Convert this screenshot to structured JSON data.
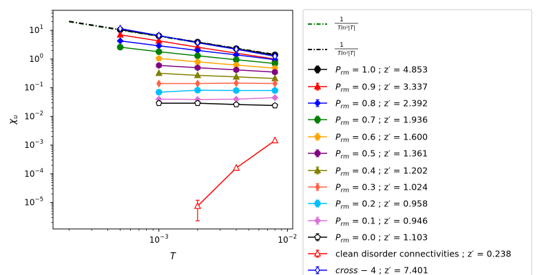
{
  "chart_data": {
    "type": "line",
    "xlabel": "T",
    "ylabel": "χu",
    "xscale": "log",
    "yscale": "log",
    "xlim": [
      0.00015,
      0.011
    ],
    "ylim": [
      1.2e-06,
      50
    ],
    "xticks": [
      {
        "value": 0.001,
        "label": "10",
        "exp": "−3"
      },
      {
        "value": 0.01,
        "label": "10",
        "exp": "−2"
      }
    ],
    "yticks": [
      {
        "value": 1e-05,
        "label": "10",
        "exp": "−5"
      },
      {
        "value": 0.0001,
        "label": "10",
        "exp": "−4"
      },
      {
        "value": 0.001,
        "label": "10",
        "exp": "−3"
      },
      {
        "value": 0.01,
        "label": "10",
        "exp": "−2"
      },
      {
        "value": 0.1,
        "label": "10",
        "exp": "−1"
      },
      {
        "value": 1,
        "label": "10",
        "exp": "0"
      },
      {
        "value": 10,
        "label": "10",
        "exp": "1"
      }
    ],
    "legend_position": "outside-right",
    "reference_lines": [
      {
        "name": "1/(Tln²|T|)",
        "style": "dashdot",
        "color": "#008000",
        "x": [
          0.0002,
          0.008
        ],
        "y": [
          20.1,
          1.37
        ]
      },
      {
        "name": "1/(Tln²|T|)",
        "style": "dashdot",
        "color": "#000000",
        "x": [
          0.0002,
          0.008
        ],
        "y": [
          20.5,
          1.44
        ]
      }
    ],
    "series": [
      {
        "name": "P_rm = 1.0 ; z' = 4.853",
        "color": "#000000",
        "marker": "o",
        "x": [
          0.0005,
          0.001,
          0.002,
          0.004,
          0.008
        ],
        "y": [
          10.5,
          6.4,
          3.9,
          2.3,
          1.4
        ]
      },
      {
        "name": "P_rm = 0.9 ; z' = 3.337",
        "color": "#ff0000",
        "marker": "^",
        "x": [
          0.0005,
          0.001,
          0.002,
          0.004,
          0.008
        ],
        "y": [
          7.0,
          4.3,
          2.6,
          1.6,
          1.0
        ]
      },
      {
        "name": "P_rm = 0.8 ; z' = 2.392",
        "color": "#0000ff",
        "marker": "D",
        "x": [
          0.0005,
          0.001,
          0.002,
          0.004,
          0.008
        ],
        "y": [
          4.3,
          2.9,
          2.0,
          1.4,
          0.95
        ]
      },
      {
        "name": "P_rm = 0.7 ; z' = 1.936",
        "color": "#008000",
        "marker": "o",
        "x": [
          0.0005,
          0.001,
          0.002,
          0.004,
          0.008
        ],
        "y": [
          2.6,
          1.8,
          1.3,
          0.95,
          0.7
        ]
      },
      {
        "name": "P_rm = 0.6 ; z' = 1.600",
        "color": "#ffa500",
        "marker": "p",
        "x": [
          0.001,
          0.002,
          0.004,
          0.008
        ],
        "y": [
          1.05,
          0.8,
          0.62,
          0.48
        ]
      },
      {
        "name": "P_rm = 0.5 ; z' = 1.361",
        "color": "#800080",
        "marker": "h",
        "x": [
          0.001,
          0.002,
          0.004,
          0.008
        ],
        "y": [
          0.6,
          0.5,
          0.42,
          0.35
        ]
      },
      {
        "name": "P_rm = 0.4 ; z' = 1.202",
        "color": "#808000",
        "marker": "^",
        "x": [
          0.001,
          0.002,
          0.004,
          0.008
        ],
        "y": [
          0.32,
          0.27,
          0.24,
          0.21
        ]
      },
      {
        "name": "P_rm = 0.3 ; z' = 1.024",
        "color": "#ff6347",
        "marker": "d",
        "x": [
          0.001,
          0.002,
          0.004,
          0.008
        ],
        "y": [
          0.14,
          0.14,
          0.145,
          0.14
        ]
      },
      {
        "name": "P_rm = 0.2 ; z' = 0.958",
        "color": "#00bfff",
        "marker": "o",
        "x": [
          0.001,
          0.002,
          0.004,
          0.008
        ],
        "y": [
          0.07,
          0.082,
          0.08,
          0.08
        ]
      },
      {
        "name": "P_rm = 0.1 ; z' = 0.946",
        "color": "#da70d6",
        "marker": "D",
        "x": [
          0.001,
          0.002,
          0.004,
          0.008
        ],
        "y": [
          0.04,
          0.039,
          0.04,
          0.045
        ]
      },
      {
        "name": "P_rm = 0.0 ; z' = 1.103",
        "color": "#000000",
        "marker": "p",
        "open": true,
        "x": [
          0.001,
          0.002,
          0.004,
          0.008
        ],
        "y": [
          0.029,
          0.029,
          0.026,
          0.024
        ]
      },
      {
        "name": "clean disorder connectivities ; z' = 0.238",
        "color": "#ff0000",
        "marker": "^",
        "open": true,
        "x": [
          0.002,
          0.004,
          0.008
        ],
        "y": [
          7.5e-06,
          0.00016,
          0.00145
        ],
        "err_low": [
          5.2e-06,
          0,
          0
        ],
        "err_high": [
          4.5e-06,
          0,
          0
        ]
      },
      {
        "name": "cross − 4 ; z' = 7.401",
        "color": "#0000ff",
        "marker": "d",
        "open": true,
        "x": [
          0.0005,
          0.001,
          0.002,
          0.004,
          0.008
        ],
        "y": [
          11.5,
          6.6,
          3.7,
          2.2,
          1.25
        ]
      }
    ],
    "legend": [
      {
        "kind": "line",
        "color": "#008000",
        "style": "dashdot",
        "num": "1",
        "den": "Tln²|T|"
      },
      {
        "kind": "line",
        "color": "#000000",
        "style": "dashdot",
        "num": "1",
        "den": "Tln²|T|"
      },
      {
        "kind": "series",
        "index": 0,
        "prefix": "P",
        "sub": "rm",
        "rest": " = 1.0 ; z′ = 4.853"
      },
      {
        "kind": "series",
        "index": 1,
        "prefix": "P",
        "sub": "rm",
        "rest": " = 0.9 ; z′ = 3.337"
      },
      {
        "kind": "series",
        "index": 2,
        "prefix": "P",
        "sub": "rm",
        "rest": " = 0.8 ; z′ = 2.392"
      },
      {
        "kind": "series",
        "index": 3,
        "prefix": "P",
        "sub": "rm",
        "rest": " = 0.7 ; z′ = 1.936"
      },
      {
        "kind": "series",
        "index": 4,
        "prefix": "P",
        "sub": "rm",
        "rest": " = 0.6 ; z′ = 1.600"
      },
      {
        "kind": "series",
        "index": 5,
        "prefix": "P",
        "sub": "rm",
        "rest": " = 0.5 ; z′ = 1.361"
      },
      {
        "kind": "series",
        "index": 6,
        "prefix": "P",
        "sub": "rm",
        "rest": " = 0.4 ; z′ = 1.202"
      },
      {
        "kind": "series",
        "index": 7,
        "prefix": "P",
        "sub": "rm",
        "rest": " = 0.3 ; z′ = 1.024"
      },
      {
        "kind": "series",
        "index": 8,
        "prefix": "P",
        "sub": "rm",
        "rest": " = 0.2 ; z′ = 0.958"
      },
      {
        "kind": "series",
        "index": 9,
        "prefix": "P",
        "sub": "rm",
        "rest": " = 0.1 ; z′ = 0.946"
      },
      {
        "kind": "series",
        "index": 10,
        "prefix": "P",
        "sub": "rm",
        "rest": " = 0.0 ; z′ = 1.103"
      },
      {
        "kind": "series",
        "index": 11,
        "prefix": "",
        "sub": "",
        "rest": "clean disorder connectivities ; z′ = 0.238"
      },
      {
        "kind": "series",
        "index": 12,
        "prefix": "cross",
        "sub": "",
        "rest": " − 4 ; z′ = 7.401",
        "italic_prefix": true
      }
    ]
  }
}
